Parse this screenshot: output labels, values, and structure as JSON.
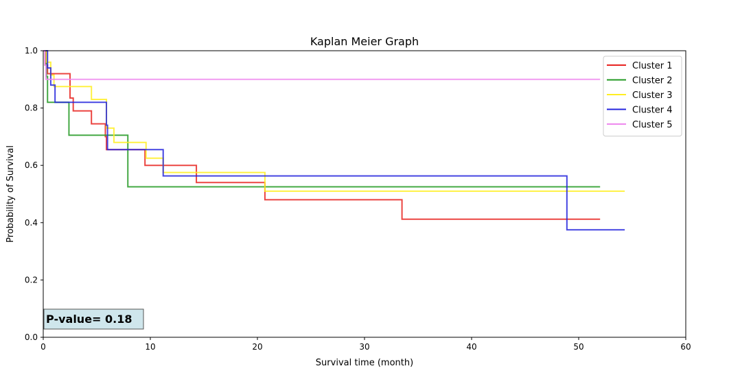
{
  "chart_data": {
    "type": "line",
    "title": "Kaplan Meier Graph",
    "xlabel": "Survival time (month)",
    "ylabel": "Probability of Survival",
    "xlim": [
      0,
      60
    ],
    "ylim": [
      0,
      1.0
    ],
    "xticks": [
      0,
      10,
      20,
      30,
      40,
      50,
      60
    ],
    "yticks": [
      0.0,
      0.2,
      0.4,
      0.6,
      0.8,
      1.0
    ],
    "xtick_labels": [
      "0",
      "10",
      "20",
      "30",
      "40",
      "50",
      "60"
    ],
    "ytick_labels": [
      "0.0",
      "0.2",
      "0.4",
      "0.6",
      "0.8",
      "1.0"
    ],
    "grid": false,
    "legend_position": "top-right",
    "annotation": "P-value= 0.18",
    "series": [
      {
        "name": "Cluster 1",
        "color": "#e8231f",
        "steps": [
          [
            0,
            1.0
          ],
          [
            0.2,
            0.95
          ],
          [
            0.4,
            0.92
          ],
          [
            2.5,
            0.835
          ],
          [
            2.8,
            0.79
          ],
          [
            4.5,
            0.745
          ],
          [
            5.8,
            0.7
          ],
          [
            5.9,
            0.655
          ],
          [
            9.5,
            0.6
          ],
          [
            14.3,
            0.54
          ],
          [
            20.7,
            0.48
          ],
          [
            33.5,
            0.412
          ],
          [
            52.0,
            0.412
          ]
        ]
      },
      {
        "name": "Cluster 2",
        "color": "#229922",
        "steps": [
          [
            0,
            1.0
          ],
          [
            0.3,
            0.91
          ],
          [
            0.4,
            0.82
          ],
          [
            2.4,
            0.705
          ],
          [
            7.9,
            0.525
          ],
          [
            52.0,
            0.525
          ]
        ]
      },
      {
        "name": "Cluster 3",
        "color": "#ffee22",
        "steps": [
          [
            0,
            1.0
          ],
          [
            0.3,
            0.96
          ],
          [
            0.7,
            0.915
          ],
          [
            1.0,
            0.875
          ],
          [
            4.5,
            0.83
          ],
          [
            5.9,
            0.73
          ],
          [
            6.6,
            0.68
          ],
          [
            7.2,
            0.68
          ],
          [
            9.6,
            0.625
          ],
          [
            11.2,
            0.575
          ],
          [
            20.7,
            0.51
          ],
          [
            54.3,
            0.51
          ]
        ]
      },
      {
        "name": "Cluster 4",
        "color": "#2424dd",
        "steps": [
          [
            0,
            1.0
          ],
          [
            0.4,
            0.94
          ],
          [
            0.7,
            0.88
          ],
          [
            1.1,
            0.82
          ],
          [
            5.9,
            0.74
          ],
          [
            6.0,
            0.655
          ],
          [
            11.2,
            0.563
          ],
          [
            48.9,
            0.375
          ],
          [
            54.3,
            0.375
          ]
        ]
      },
      {
        "name": "Cluster 5",
        "color": "#ee88ee",
        "steps": [
          [
            0,
            1.0
          ],
          [
            0.15,
            0.95
          ],
          [
            0.25,
            0.9
          ],
          [
            52.0,
            0.9
          ]
        ]
      }
    ]
  }
}
